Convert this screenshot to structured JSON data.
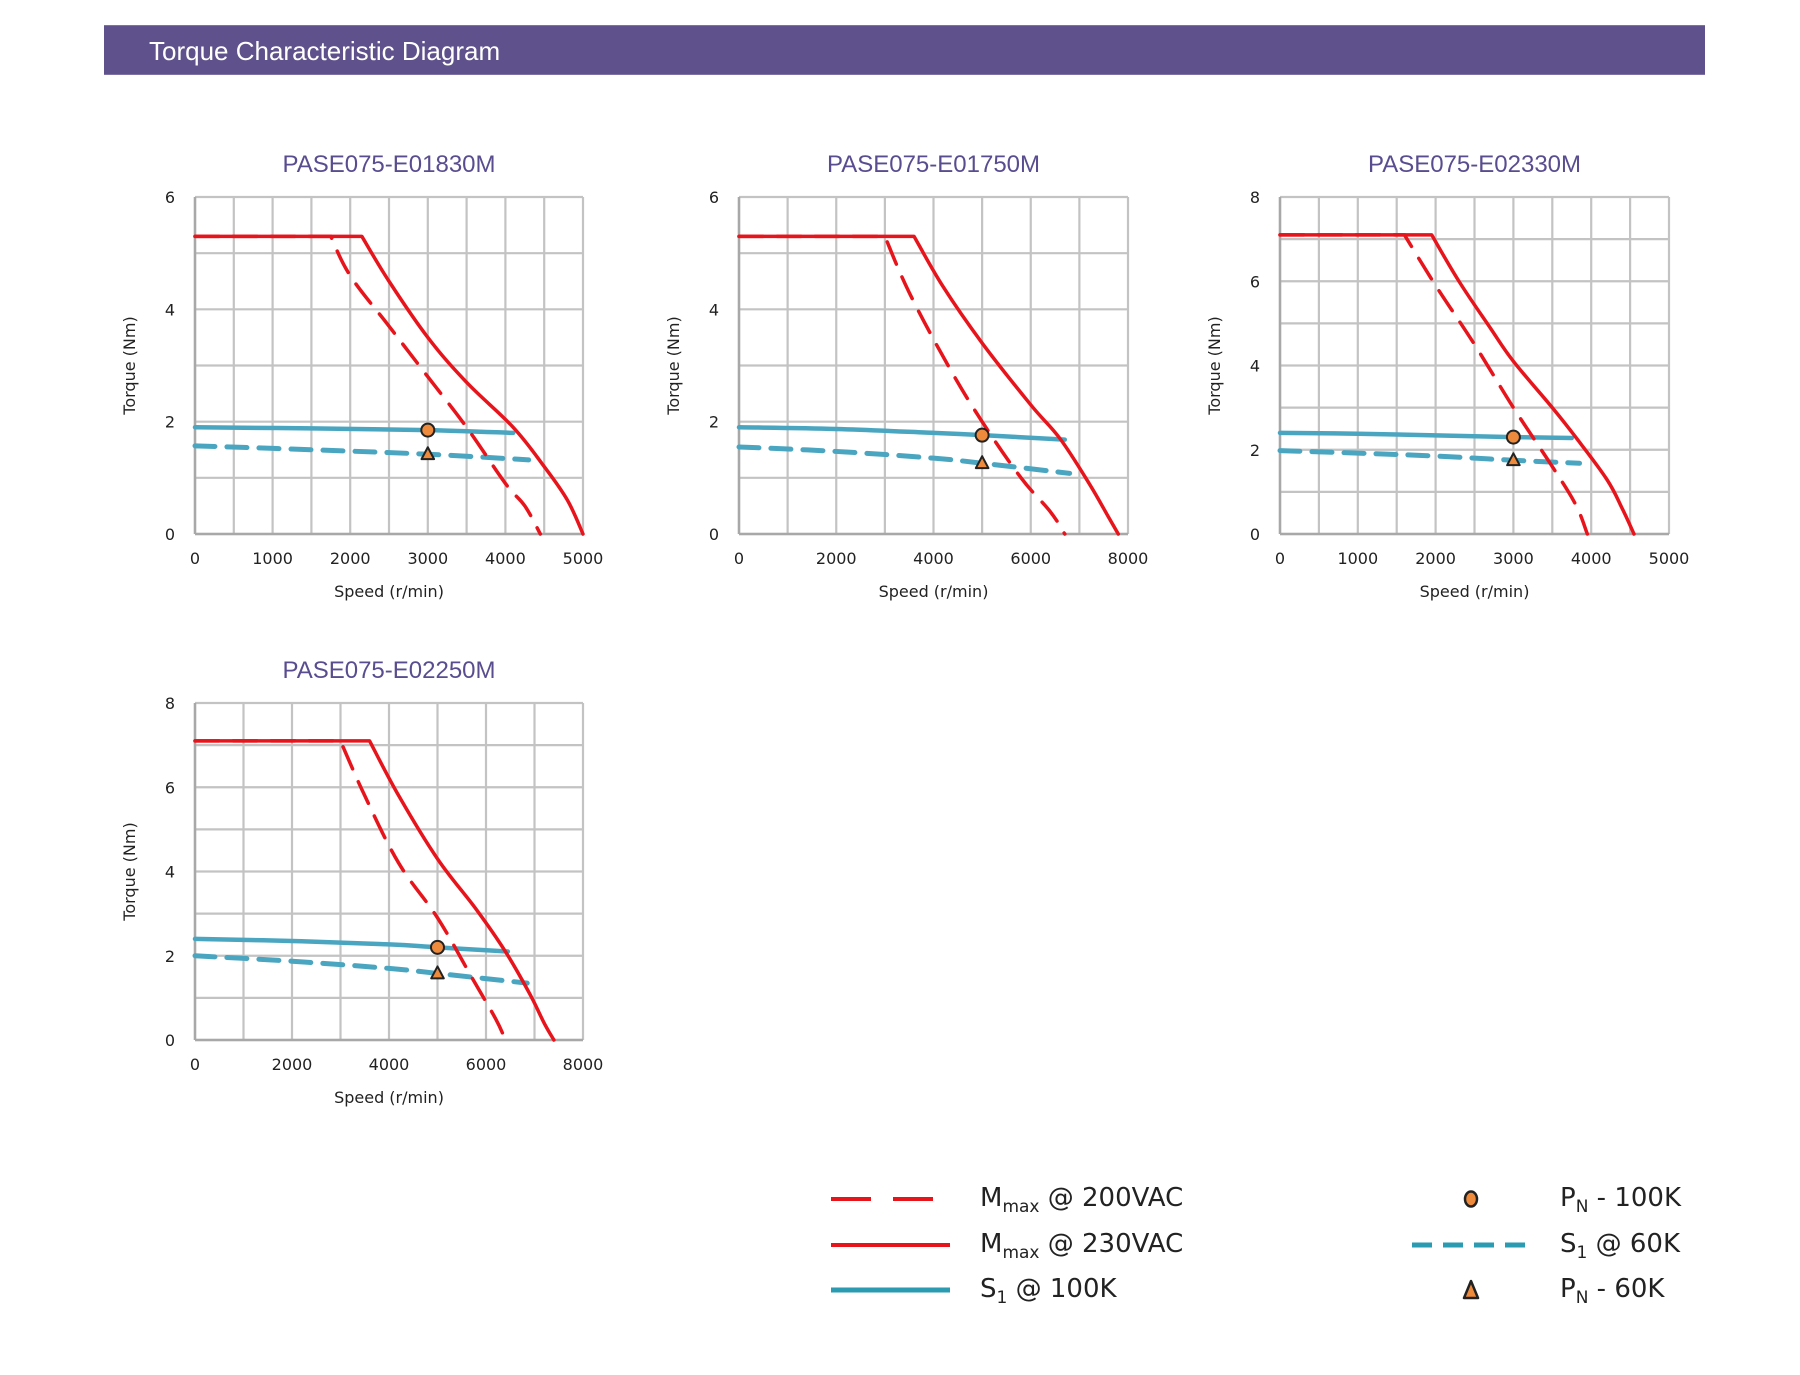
{
  "header": {
    "title": "Torque Characteristic Diagram"
  },
  "colors": {
    "header_bg": "#5f518b",
    "title_text": "#5a4d8f",
    "mmax": "#e8141c",
    "s1": "#4aa6c0",
    "s1_legend": "#2a9bb0",
    "marker_fill": "#ee8a3c",
    "marker_stroke": "#222222",
    "grid": "#c3c3c3"
  },
  "legend": {
    "items": [
      {
        "key": "mmax_200",
        "main": "M",
        "sub": "max",
        "rest": " @ 200VAC",
        "style": "red-dashed"
      },
      {
        "key": "mmax_230",
        "main": "M",
        "sub": "max",
        "rest": " @ 230VAC",
        "style": "red-solid"
      },
      {
        "key": "s1_100",
        "main": "S",
        "sub": "1",
        "rest": " @ 100K",
        "style": "blue-solid"
      },
      {
        "key": "pn_100",
        "main": "P",
        "sub": "N",
        "rest": " - 100K",
        "style": "circle-marker"
      },
      {
        "key": "s1_60",
        "main": "S",
        "sub": "1",
        "rest": " @ 60K",
        "style": "blue-dashed"
      },
      {
        "key": "pn_60",
        "main": "P",
        "sub": "N",
        "rest": " - 60K",
        "style": "triangle-marker"
      }
    ]
  },
  "chart_data": [
    {
      "type": "line",
      "title": "PASE075-E01830M",
      "xlabel": "Speed (r/min)",
      "ylabel": "Torque (Nm)",
      "xlim": [
        0,
        5000
      ],
      "ylim": [
        0,
        6
      ],
      "x_ticks": [
        0,
        1000,
        2000,
        3000,
        4000,
        5000
      ],
      "y_ticks": [
        0,
        2,
        4,
        6
      ],
      "x_grid_step": 500,
      "y_grid_step": 1,
      "grid": true,
      "series": [
        {
          "name": "Mmax @ 230VAC",
          "style": "red-solid",
          "points": [
            [
              0,
              5.3
            ],
            [
              2150,
              5.3
            ],
            [
              2500,
              4.5
            ],
            [
              3000,
              3.5
            ],
            [
              3500,
              2.7
            ],
            [
              4100,
              1.9
            ],
            [
              4500,
              1.2
            ],
            [
              4800,
              0.6
            ],
            [
              5000,
              0
            ]
          ]
        },
        {
          "name": "Mmax @ 200VAC",
          "style": "red-dashed",
          "points": [
            [
              0,
              5.3
            ],
            [
              1750,
              5.3
            ],
            [
              2000,
              4.6
            ],
            [
              2500,
              3.7
            ],
            [
              3000,
              2.8
            ],
            [
              3500,
              1.9
            ],
            [
              4000,
              0.9
            ],
            [
              4250,
              0.5
            ],
            [
              4450,
              0
            ]
          ]
        },
        {
          "name": "S1 @ 100K",
          "style": "blue-solid",
          "points": [
            [
              0,
              1.9
            ],
            [
              1500,
              1.88
            ],
            [
              3000,
              1.85
            ],
            [
              4100,
              1.8
            ]
          ]
        },
        {
          "name": "S1 @ 60K",
          "style": "blue-dashed",
          "points": [
            [
              0,
              1.57
            ],
            [
              1500,
              1.5
            ],
            [
              3000,
              1.42
            ],
            [
              4300,
              1.32
            ]
          ]
        }
      ],
      "markers": [
        {
          "name": "PN - 100K",
          "shape": "circle",
          "x": 3000,
          "y": 1.85
        },
        {
          "name": "PN - 60K",
          "shape": "triangle",
          "x": 3000,
          "y": 1.42
        }
      ]
    },
    {
      "type": "line",
      "title": "PASE075-E01750M",
      "xlabel": "Speed (r/min)",
      "ylabel": "Torque (Nm)",
      "xlim": [
        0,
        8000
      ],
      "ylim": [
        0,
        6
      ],
      "x_ticks": [
        0,
        2000,
        4000,
        6000,
        8000
      ],
      "y_ticks": [
        0,
        2,
        4,
        6
      ],
      "x_grid_step": 1000,
      "y_grid_step": 1,
      "grid": true,
      "series": [
        {
          "name": "Mmax @ 230VAC",
          "style": "red-solid",
          "points": [
            [
              0,
              5.3
            ],
            [
              3600,
              5.3
            ],
            [
              4200,
              4.4
            ],
            [
              5000,
              3.4
            ],
            [
              6000,
              2.3
            ],
            [
              6600,
              1.7
            ],
            [
              7200,
              0.9
            ],
            [
              7600,
              0.3
            ],
            [
              7800,
              0
            ]
          ]
        },
        {
          "name": "Mmax @ 200VAC",
          "style": "red-dashed",
          "points": [
            [
              0,
              5.3
            ],
            [
              3000,
              5.3
            ],
            [
              3500,
              4.3
            ],
            [
              4300,
              3.0
            ],
            [
              5000,
              2.0
            ],
            [
              5800,
              1.0
            ],
            [
              6400,
              0.4
            ],
            [
              6700,
              0
            ]
          ]
        },
        {
          "name": "S1 @ 100K",
          "style": "blue-solid",
          "points": [
            [
              0,
              1.9
            ],
            [
              2000,
              1.87
            ],
            [
              4000,
              1.8
            ],
            [
              5000,
              1.76
            ],
            [
              6700,
              1.68
            ]
          ]
        },
        {
          "name": "S1 @ 60K",
          "style": "blue-dashed",
          "points": [
            [
              0,
              1.55
            ],
            [
              2000,
              1.47
            ],
            [
              4000,
              1.35
            ],
            [
              5000,
              1.26
            ],
            [
              6800,
              1.08
            ]
          ]
        }
      ],
      "markers": [
        {
          "name": "PN - 100K",
          "shape": "circle",
          "x": 5000,
          "y": 1.76
        },
        {
          "name": "PN - 60K",
          "shape": "triangle",
          "x": 5000,
          "y": 1.26
        }
      ]
    },
    {
      "type": "line",
      "title": "PASE075-E02330M",
      "xlabel": "Speed (r/min)",
      "ylabel": "Torque (Nm)",
      "xlim": [
        0,
        5000
      ],
      "ylim": [
        0,
        8
      ],
      "x_ticks": [
        0,
        1000,
        2000,
        3000,
        4000,
        5000
      ],
      "y_ticks": [
        0,
        2,
        4,
        6,
        8
      ],
      "x_grid_step": 500,
      "y_grid_step": 1,
      "grid": true,
      "series": [
        {
          "name": "Mmax @ 230VAC",
          "style": "red-solid",
          "points": [
            [
              0,
              7.1
            ],
            [
              1950,
              7.1
            ],
            [
              2300,
              6.0
            ],
            [
              2700,
              4.9
            ],
            [
              3000,
              4.1
            ],
            [
              3500,
              3.0
            ],
            [
              3800,
              2.3
            ],
            [
              4200,
              1.3
            ],
            [
              4400,
              0.6
            ],
            [
              4550,
              0
            ]
          ]
        },
        {
          "name": "Mmax @ 200VAC",
          "style": "red-dashed",
          "points": [
            [
              0,
              7.1
            ],
            [
              1600,
              7.1
            ],
            [
              2000,
              5.9
            ],
            [
              2500,
              4.5
            ],
            [
              3000,
              3.0
            ],
            [
              3500,
              1.6
            ],
            [
              3800,
              0.7
            ],
            [
              3950,
              0
            ]
          ]
        },
        {
          "name": "S1 @ 100K",
          "style": "blue-solid",
          "points": [
            [
              0,
              2.4
            ],
            [
              1000,
              2.38
            ],
            [
              2000,
              2.34
            ],
            [
              3000,
              2.3
            ],
            [
              3750,
              2.28
            ]
          ]
        },
        {
          "name": "S1 @ 60K",
          "style": "blue-dashed",
          "points": [
            [
              0,
              1.98
            ],
            [
              1000,
              1.92
            ],
            [
              2000,
              1.85
            ],
            [
              3000,
              1.75
            ],
            [
              3850,
              1.68
            ]
          ]
        }
      ],
      "markers": [
        {
          "name": "PN - 100K",
          "shape": "circle",
          "x": 3000,
          "y": 2.3
        },
        {
          "name": "PN - 60K",
          "shape": "triangle",
          "x": 3000,
          "y": 1.75
        }
      ]
    },
    {
      "type": "line",
      "title": "PASE075-E02250M",
      "xlabel": "Speed (r/min)",
      "ylabel": "Torque (Nm)",
      "xlim": [
        0,
        8000
      ],
      "ylim": [
        0,
        8
      ],
      "x_ticks": [
        0,
        2000,
        4000,
        6000,
        8000
      ],
      "y_ticks": [
        0,
        2,
        4,
        6,
        8
      ],
      "x_grid_step": 1000,
      "y_grid_step": 1,
      "grid": true,
      "series": [
        {
          "name": "Mmax @ 230VAC",
          "style": "red-solid",
          "points": [
            [
              0,
              7.1
            ],
            [
              3600,
              7.1
            ],
            [
              4200,
              5.8
            ],
            [
              5000,
              4.3
            ],
            [
              5800,
              3.1
            ],
            [
              6400,
              2.1
            ],
            [
              6900,
              1.1
            ],
            [
              7200,
              0.4
            ],
            [
              7400,
              0
            ]
          ]
        },
        {
          "name": "Mmax @ 200VAC",
          "style": "red-dashed",
          "points": [
            [
              0,
              7.1
            ],
            [
              3000,
              7.1
            ],
            [
              3500,
              5.8
            ],
            [
              4200,
              4.2
            ],
            [
              5000,
              2.9
            ],
            [
              5700,
              1.5
            ],
            [
              6200,
              0.5
            ],
            [
              6400,
              0
            ]
          ]
        },
        {
          "name": "S1 @ 100K",
          "style": "blue-solid",
          "points": [
            [
              0,
              2.4
            ],
            [
              2000,
              2.35
            ],
            [
              4000,
              2.27
            ],
            [
              5000,
              2.2
            ],
            [
              6450,
              2.1
            ]
          ]
        },
        {
          "name": "S1 @ 60K",
          "style": "blue-dashed",
          "points": [
            [
              0,
              2.0
            ],
            [
              2000,
              1.87
            ],
            [
              4000,
              1.7
            ],
            [
              5000,
              1.58
            ],
            [
              6850,
              1.35
            ]
          ]
        }
      ],
      "markers": [
        {
          "name": "PN - 100K",
          "shape": "circle",
          "x": 5000,
          "y": 2.2
        },
        {
          "name": "PN - 60K",
          "shape": "triangle",
          "x": 5000,
          "y": 1.58
        }
      ]
    }
  ]
}
